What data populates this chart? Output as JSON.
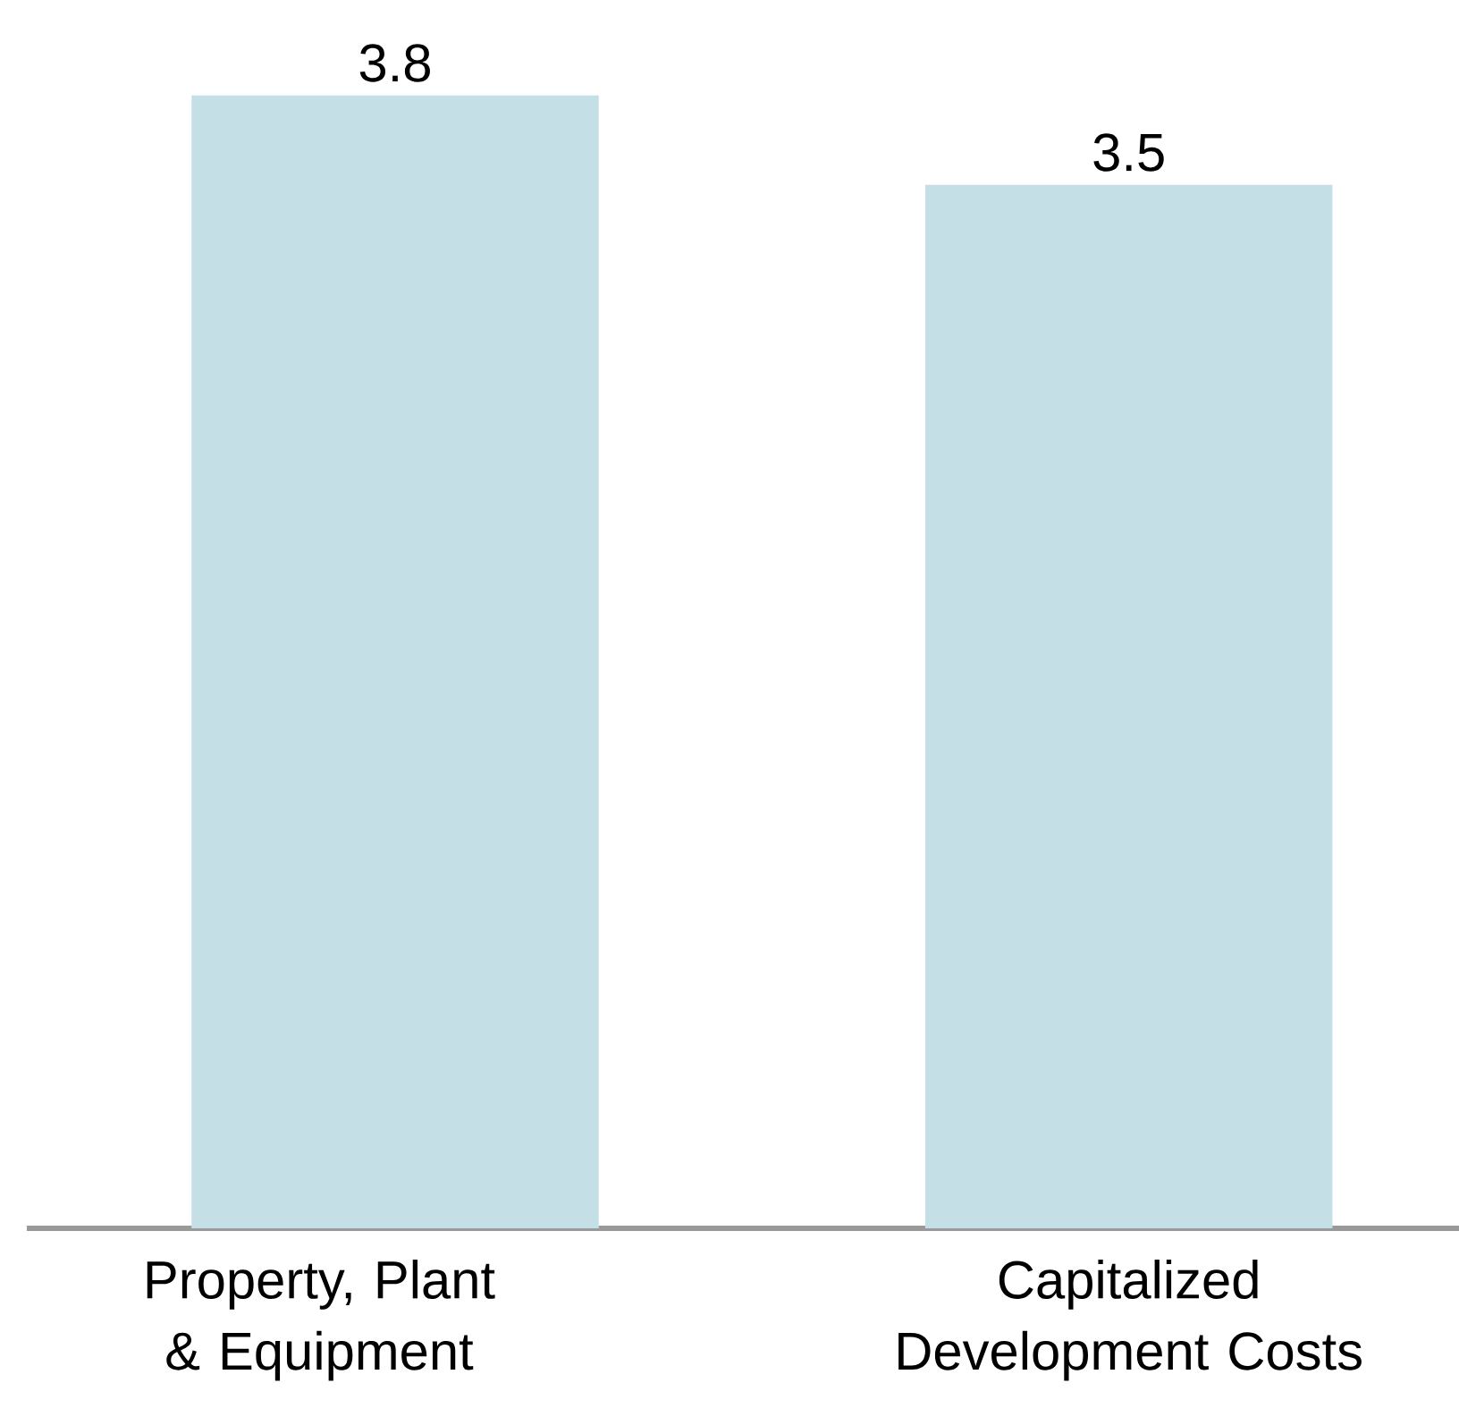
{
  "chart_data": {
    "type": "bar",
    "categories": [
      "Property, Plant & Equipment",
      "Capitalized Development Costs"
    ],
    "values": [
      3.8,
      3.5
    ],
    "color": "#c5dfe6",
    "data_labels": true
  }
}
